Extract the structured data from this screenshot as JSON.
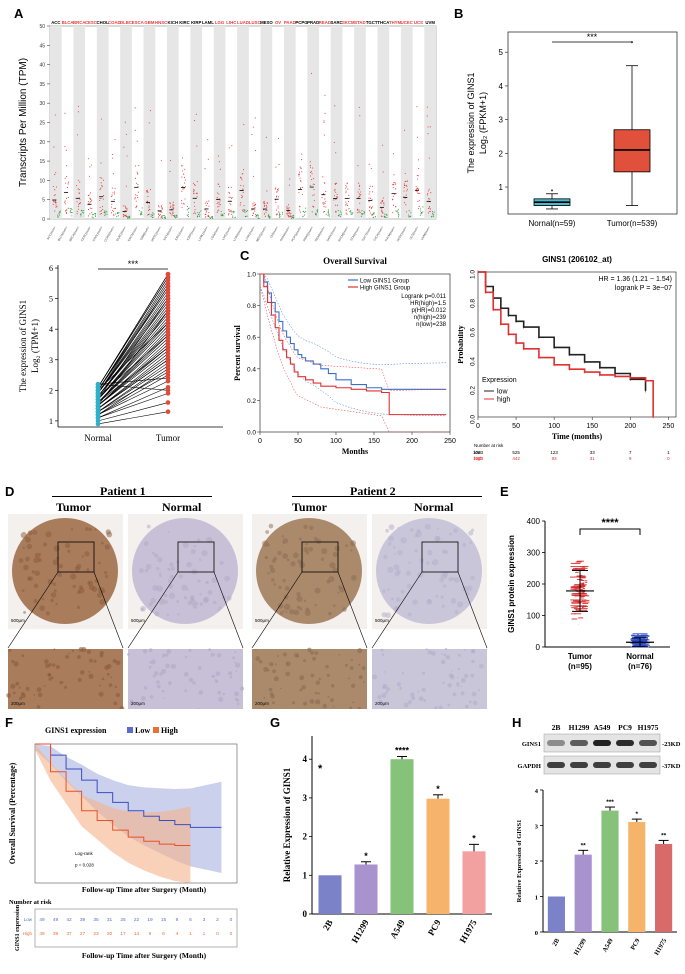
{
  "panels": {
    "A": "A",
    "B": "B",
    "C": "C",
    "D": "D",
    "E": "E",
    "F": "F",
    "G": "G",
    "H": "H"
  },
  "panelA": {
    "ylabel": "Transcripts Per Million (TPM)",
    "yticks": [
      "0",
      "5",
      "10",
      "15",
      "20",
      "25",
      "30",
      "35",
      "40",
      "45",
      "50"
    ],
    "cancers": [
      "ACC",
      "BLCA",
      "BRCA",
      "CESC",
      "CHOL",
      "COAD",
      "DLBC",
      "ESCA",
      "GBM",
      "HNSC",
      "KICH",
      "KIRC",
      "KIRP",
      "LAML",
      "LGG",
      "LIHC",
      "LUAD",
      "LUSC",
      "MESO",
      "OV",
      "PAAD",
      "PCPG",
      "PRAD",
      "READ",
      "SARC",
      "SKCM",
      "STAD",
      "TGCT",
      "THCA",
      "THYM",
      "UCEC",
      "UCS",
      "UVM"
    ],
    "red_labels": [
      "BLCA",
      "BRCA",
      "CESC",
      "COAD",
      "DLBC",
      "ESCA",
      "GBM",
      "HNSC",
      "LGG",
      "LIHC",
      "LUAD",
      "LUSC",
      "OV",
      "PAAD",
      "READ",
      "SKCM",
      "STAD",
      "THYM",
      "UCEC",
      "UCS"
    ],
    "colors": {
      "tumor": "#e83a3a",
      "normal": "#2a9a3a",
      "shade": "#e6e6e6"
    }
  },
  "chart_data": [
    {
      "id": "B",
      "type": "box",
      "categories": [
        "Nornal(n=59)",
        "Tumor(n=539)"
      ],
      "ylabel_line1": "The expression of GINS1",
      "ylabel_line2": "Log₂ (FPKM+1)",
      "yticks": [
        "1",
        "2",
        "3",
        "4",
        "5"
      ],
      "ylim": [
        0.2,
        5.6
      ],
      "boxes": [
        {
          "q1": 0.45,
          "median": 0.55,
          "q3": 0.65,
          "lo": 0.35,
          "hi": 0.8,
          "color": "#4fb8c8"
        },
        {
          "q1": 1.45,
          "median": 2.1,
          "q3": 2.7,
          "lo": 0.45,
          "hi": 4.6,
          "color": "#e0503a"
        }
      ],
      "significance": "***"
    },
    {
      "id": "A2",
      "type": "paired",
      "categories": [
        "Normal",
        "Tumor"
      ],
      "ylabel_line1": "The  expression  of  GINS1",
      "ylabel_line2": "Log₂ (TPM+1)",
      "yticks": [
        "1",
        "2",
        "3",
        "4",
        "5",
        "6"
      ],
      "ylim": [
        0.8,
        6.1
      ],
      "normal": [
        0.9,
        1.0,
        1.1,
        1.1,
        1.2,
        1.2,
        1.3,
        1.3,
        1.3,
        1.4,
        1.4,
        1.4,
        1.5,
        1.5,
        1.5,
        1.5,
        1.6,
        1.6,
        1.6,
        1.6,
        1.7,
        1.7,
        1.7,
        1.7,
        1.8,
        1.8,
        1.8,
        1.8,
        1.9,
        1.9,
        1.9,
        1.9,
        2.0,
        2.0,
        2.0,
        2.0,
        2.1,
        2.1,
        2.1,
        2.1,
        2.2,
        2.2,
        1.2,
        1.4,
        1.6,
        1.8,
        2.0,
        1.5,
        1.7,
        1.9
      ],
      "tumor": [
        1.3,
        1.6,
        1.9,
        2.1,
        2.3,
        2.5,
        2.6,
        2.8,
        2.9,
        3.0,
        3.1,
        3.2,
        3.3,
        3.4,
        3.5,
        3.6,
        3.7,
        3.8,
        3.9,
        4.0,
        4.1,
        4.2,
        4.3,
        4.4,
        4.5,
        4.6,
        4.7,
        4.8,
        4.9,
        5.0,
        5.1,
        5.2,
        5.3,
        5.4,
        5.5,
        5.6,
        5.7,
        5.8,
        5.8,
        5.7,
        2.0,
        2.4,
        2.7,
        3.0,
        3.4,
        3.8,
        4.2,
        4.6,
        5.0,
        5.4
      ],
      "significance": "***"
    },
    {
      "id": "C1",
      "type": "line",
      "title": "Overall Survival",
      "xlabel": "Months",
      "ylabel": "Percent survival",
      "xticks": [
        "0",
        "50",
        "100",
        "150",
        "200",
        "250"
      ],
      "yticks": [
        "0.0",
        "0.2",
        "0.4",
        "0.6",
        "0.8",
        "1.0"
      ],
      "xlim": [
        0,
        250
      ],
      "ylim": [
        0,
        1
      ],
      "legend": [
        "Low GINS1 Group",
        "High GINS1 Group"
      ],
      "stats": [
        "Logrank p=0.011",
        "HR(high)=1.5",
        "p(HR)=0.012",
        "n(high)=239",
        "n(low)=238"
      ],
      "series": [
        {
          "name": "Low GINS1 Group",
          "color": "#3a6ec8",
          "x": [
            0,
            5,
            10,
            15,
            20,
            25,
            30,
            35,
            40,
            45,
            50,
            55,
            60,
            70,
            80,
            90,
            100,
            120,
            140,
            160,
            180,
            200,
            245
          ],
          "y": [
            1.0,
            0.95,
            0.88,
            0.82,
            0.76,
            0.7,
            0.64,
            0.6,
            0.56,
            0.52,
            0.49,
            0.47,
            0.45,
            0.43,
            0.4,
            0.37,
            0.33,
            0.3,
            0.28,
            0.27,
            0.27,
            0.27,
            0.27
          ]
        },
        {
          "name": "High GINS1 Group",
          "color": "#e03030",
          "x": [
            0,
            5,
            10,
            15,
            20,
            25,
            30,
            35,
            40,
            45,
            50,
            60,
            70,
            80,
            100,
            120,
            140,
            160,
            170,
            200,
            245
          ],
          "y": [
            1.0,
            0.92,
            0.82,
            0.74,
            0.66,
            0.58,
            0.52,
            0.47,
            0.43,
            0.38,
            0.35,
            0.33,
            0.31,
            0.29,
            0.28,
            0.27,
            0.26,
            0.25,
            0.11,
            0.11,
            0.11
          ]
        }
      ]
    },
    {
      "id": "C2",
      "type": "line",
      "title": "GINS1 (206102_at)",
      "xlabel": "Time (months)",
      "ylabel": "Probability",
      "xticks": [
        "0",
        "50",
        "100",
        "150",
        "200",
        "250"
      ],
      "yticks": [
        "0.0",
        "0.2",
        "0.4",
        "0.6",
        "0.8",
        "1.0"
      ],
      "xlim": [
        0,
        260
      ],
      "ylim": [
        0,
        1
      ],
      "stats": [
        "HR = 1.36 (1.21 − 1.54)",
        "logrank P = 3e−07"
      ],
      "legend_title": "Expression",
      "legend": [
        "low",
        "high"
      ],
      "risk_title": "Number at risk",
      "risk_rows": [
        {
          "name": "low",
          "color": "#000000",
          "values": [
            "1083",
            "525",
            "123",
            "33",
            "7",
            "1"
          ]
        },
        {
          "name": "high",
          "color": "#e03030",
          "values": [
            "1083",
            "442",
            "93",
            "31",
            "9",
            "0"
          ]
        }
      ],
      "series": [
        {
          "name": "low",
          "color": "#222222",
          "x": [
            0,
            10,
            20,
            30,
            40,
            50,
            60,
            80,
            100,
            120,
            140,
            160,
            180,
            200,
            220
          ],
          "y": [
            1.0,
            0.9,
            0.82,
            0.75,
            0.7,
            0.66,
            0.62,
            0.55,
            0.48,
            0.43,
            0.38,
            0.34,
            0.3,
            0.26,
            0.18
          ]
        },
        {
          "name": "high",
          "color": "#e03030",
          "x": [
            0,
            10,
            20,
            30,
            40,
            50,
            60,
            80,
            100,
            120,
            140,
            160,
            180,
            200,
            220,
            230
          ],
          "y": [
            1.0,
            0.86,
            0.74,
            0.64,
            0.57,
            0.51,
            0.47,
            0.41,
            0.36,
            0.33,
            0.31,
            0.29,
            0.28,
            0.27,
            0.25,
            0.0
          ]
        }
      ]
    },
    {
      "id": "E",
      "type": "scatter",
      "categories": [
        "Tumor",
        "Normal"
      ],
      "category_n": [
        "(n=95)",
        "(n=76)"
      ],
      "ylabel": "GINS1 protein expression",
      "yticks": [
        "0",
        "100",
        "200",
        "300",
        "400"
      ],
      "ylim": [
        0,
        400
      ],
      "tumor_mean": 178,
      "tumor_sd": 65,
      "normal_mean": 15,
      "normal_sd": 14,
      "tumor_color": "#d42a2a",
      "normal_color": "#2a4ac8",
      "significance": "****"
    },
    {
      "id": "F",
      "type": "line",
      "title": "GINS1 expression",
      "legend": [
        "Low",
        "High"
      ],
      "legend_colors": [
        "#5a6ec8",
        "#e8703a"
      ],
      "ylabel": "Overall Survival (Percentage)",
      "xlabel": "Follow-up Time after Surgery (Month)",
      "risk_title": "Number at risk",
      "risk_ylabel": "GINS1 expression",
      "stats": [
        "Log-rank",
        "p = 0.028"
      ],
      "risk_rows": [
        {
          "name": "Low",
          "color": "#5a6ec8",
          "values": [
            "49",
            "49",
            "42",
            "39",
            "35",
            "31",
            "25",
            "22",
            "19",
            "15",
            "9",
            "6",
            "3",
            "2",
            "0"
          ]
        },
        {
          "name": "High",
          "color": "#e8703a",
          "values": [
            "49",
            "39",
            "37",
            "27",
            "23",
            "20",
            "17",
            "14",
            "9",
            "6",
            "4",
            "1",
            "1",
            "0",
            "0"
          ]
        }
      ],
      "series": [
        {
          "name": "Low",
          "color": "#3a4ec0",
          "x": [
            0,
            10,
            20,
            30,
            40,
            50,
            60,
            70,
            80,
            90,
            100,
            110,
            120
          ],
          "y": [
            100,
            92,
            82,
            74,
            65,
            58,
            52,
            48,
            45,
            42,
            40,
            40,
            40
          ]
        },
        {
          "name": "High",
          "color": "#e8502a",
          "x": [
            0,
            10,
            20,
            30,
            40,
            50,
            60,
            70,
            80,
            90,
            100
          ],
          "y": [
            100,
            80,
            66,
            52,
            45,
            38,
            33,
            30,
            28,
            27,
            27
          ]
        }
      ]
    },
    {
      "id": "G",
      "type": "bar",
      "categories": [
        "2B",
        "H1299",
        "A549",
        "PC9",
        "H1975"
      ],
      "values": [
        1.0,
        1.28,
        4.0,
        2.98,
        1.62
      ],
      "errors": [
        0,
        0.07,
        0.07,
        0.1,
        0.18
      ],
      "sig": [
        "",
        "*",
        "****",
        "*",
        "*"
      ],
      "colors": [
        "#7b82c8",
        "#a993cf",
        "#87c27a",
        "#f6b46a",
        "#f2a0a0"
      ],
      "ylabel": "Relative Expression of GINS1",
      "yticks": [
        "0",
        "1",
        "2",
        "3",
        "4"
      ],
      "ylim": [
        0,
        4.6
      ],
      "corner_mark": "*"
    },
    {
      "id": "H",
      "type": "bar",
      "lanes": [
        "2B",
        "H1299",
        "A549",
        "PC9",
        "H1975"
      ],
      "blot_labels": [
        "GINS1",
        "GAPDH"
      ],
      "blot_sizes": [
        "-23KD",
        "-37KD"
      ],
      "categories": [
        "2B",
        "H1299",
        "A549",
        "PC9",
        "H1975"
      ],
      "values": [
        1.0,
        2.18,
        3.42,
        3.1,
        2.48
      ],
      "errors": [
        0,
        0.12,
        0.1,
        0.08,
        0.1
      ],
      "sig": [
        "",
        "**",
        "***",
        "*",
        "**"
      ],
      "colors": [
        "#7b82c8",
        "#a993cf",
        "#87c27a",
        "#f6b46a",
        "#d96a6a"
      ],
      "ylabel": "Relative Expression of GINS1",
      "yticks": [
        "0",
        "1",
        "2",
        "3",
        "4"
      ],
      "ylim": [
        0,
        4
      ]
    }
  ],
  "panelD": {
    "patient1": "Patient 1",
    "patient2": "Patient 2",
    "tumor": "Tumor",
    "normal": "Normal",
    "scale_big": "500μm",
    "scale_small": "200μm"
  }
}
